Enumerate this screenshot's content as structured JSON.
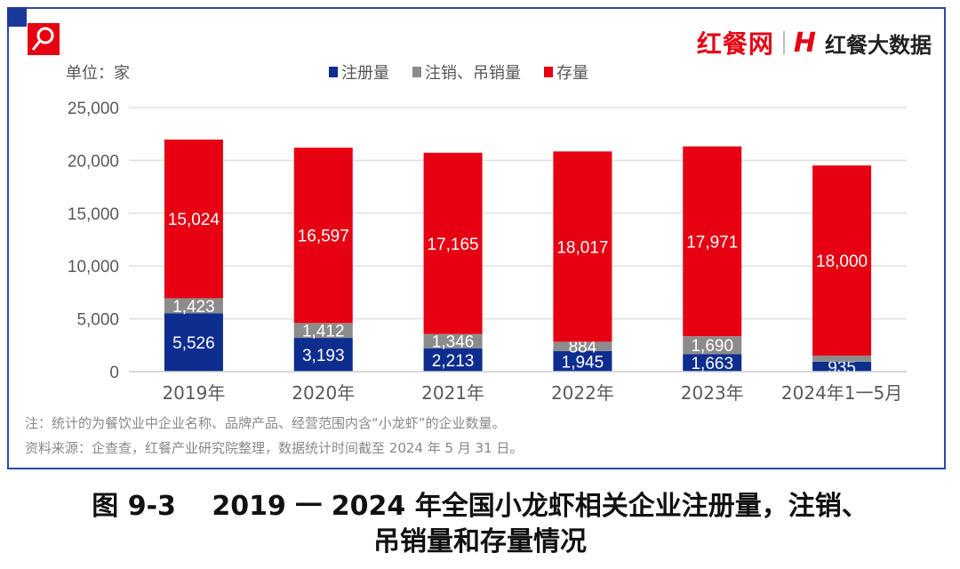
{
  "header": {
    "logo_primary": "红餐网",
    "logo_secondary": "红餐大数据",
    "search_icon": "magnifier-icon"
  },
  "unit_label": "单位：家",
  "chart_data": {
    "type": "bar",
    "stacked": true,
    "categories": [
      "2019年",
      "2020年",
      "2021年",
      "2022年",
      "2023年",
      "2024年1一5月"
    ],
    "series": [
      {
        "name": "注册量",
        "color": "#0d2d8f",
        "values": [
          5526,
          3193,
          2213,
          1945,
          1663,
          935
        ],
        "labels": [
          "5,526",
          "3,193",
          "2,213",
          "1,945",
          "1,663",
          "935"
        ]
      },
      {
        "name": "注销、吊销量",
        "color": "#8c8c8c",
        "values": [
          1423,
          1412,
          1346,
          884,
          1690,
          582
        ],
        "labels": [
          "1,423",
          "1,412",
          "1,346",
          "884",
          "1,690",
          "582"
        ]
      },
      {
        "name": "存量",
        "color": "#e60012",
        "values": [
          15024,
          16597,
          17165,
          18017,
          17971,
          18000
        ],
        "labels": [
          "15,024",
          "16,597",
          "17,165",
          "18,017",
          "17,971",
          "18,000"
        ]
      }
    ],
    "ylim": [
      0,
      25000
    ],
    "yticks": [
      0,
      5000,
      10000,
      15000,
      20000,
      25000
    ],
    "ytick_labels": [
      "0",
      "5,000",
      "10,000",
      "15,000",
      "20,000",
      "25,000"
    ],
    "grid": true,
    "legend_position": "top"
  },
  "notes": [
    "注：统计的为餐饮业中企业名称、品牌产品、经营范围内含“小龙虾”的企业数量。",
    "资料来源：企查查，红餐产业研究院整理，数据统计时间截至 2024 年 5 月 31 日。"
  ],
  "caption": {
    "line1": "图 9-3　 2019 一 2024 年全国小龙虾相关企业注册量，注销、",
    "line2": "吊销量和存量情况"
  }
}
